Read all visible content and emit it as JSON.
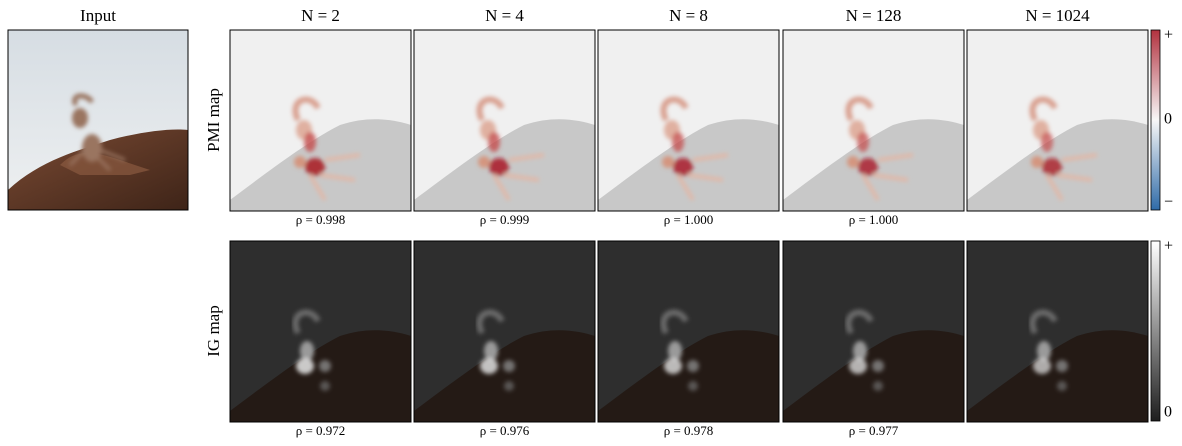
{
  "input_title": "Input",
  "columns": [
    "N = 2",
    "N = 4",
    "N = 8",
    "N = 128",
    "N = 1024"
  ],
  "rows": [
    {
      "label": "PMI map",
      "rho": [
        "ρ = 0.998",
        "ρ = 0.999",
        "ρ = 1.000",
        "ρ = 1.000"
      ],
      "colorbar": {
        "top": "+",
        "middle": "0",
        "bottom": "−"
      }
    },
    {
      "label": "IG map",
      "rho": [
        "ρ = 0.972",
        "ρ = 0.976",
        "ρ = 0.978",
        "ρ = 0.977"
      ],
      "colorbar": {
        "top": "+",
        "bottom": "0"
      }
    }
  ]
}
